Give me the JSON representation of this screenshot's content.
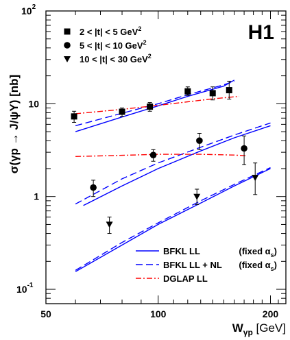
{
  "chart_data": {
    "type": "scatter",
    "title": "",
    "experiment_label": "H1",
    "xlabel": {
      "main": "W",
      "sub": "γp",
      "unit": "[GeV]"
    },
    "ylabel": "σ(γp → J/ψY) [nb]",
    "xscale": "log",
    "yscale": "log",
    "xlim": [
      50,
      220
    ],
    "ylim": [
      0.07,
      100
    ],
    "x_ticks": [
      {
        "value": 50,
        "label": "50"
      },
      {
        "value": 100,
        "label": "100"
      },
      {
        "value": 200,
        "label": "200"
      }
    ],
    "y_ticks": [
      {
        "value": 0.1,
        "base": "10",
        "exp": "-1"
      },
      {
        "value": 1,
        "base": "1",
        "exp": ""
      },
      {
        "value": 10,
        "base": "10",
        "exp": ""
      },
      {
        "value": 100,
        "base": "10",
        "exp": "2"
      }
    ],
    "data_series": [
      {
        "name": "2 < |t| < 5 GeV",
        "name_sup": "2",
        "marker": "square",
        "points": [
          {
            "x": 59.5,
            "y": 7.3,
            "err_lo": 6.3,
            "err_hi": 8.3
          },
          {
            "x": 80,
            "y": 8.2,
            "err_lo": 7.3,
            "err_hi": 9.0
          },
          {
            "x": 95,
            "y": 9.3,
            "err_lo": 8.3,
            "err_hi": 10.3
          },
          {
            "x": 120,
            "y": 13.6,
            "err_lo": 12.3,
            "err_hi": 15.2
          },
          {
            "x": 140,
            "y": 13.0,
            "err_lo": 11.0,
            "err_hi": 15.2
          },
          {
            "x": 155,
            "y": 14.0,
            "err_lo": 11.2,
            "err_hi": 17.5
          }
        ]
      },
      {
        "name": "5 < |t| < 10 GeV",
        "name_sup": "2",
        "marker": "circle",
        "points": [
          {
            "x": 67,
            "y": 1.25,
            "err_lo": 1.0,
            "err_hi": 1.5
          },
          {
            "x": 97,
            "y": 2.8,
            "err_lo": 2.4,
            "err_hi": 3.2
          },
          {
            "x": 129,
            "y": 4.0,
            "err_lo": 3.2,
            "err_hi": 4.8
          },
          {
            "x": 170,
            "y": 3.3,
            "err_lo": 2.2,
            "err_hi": 4.5
          }
        ]
      },
      {
        "name": "10 < |t| < 30 GeV",
        "name_sup": "2",
        "marker": "triangle-down",
        "points": [
          {
            "x": 74,
            "y": 0.5,
            "err_lo": 0.4,
            "err_hi": 0.6
          },
          {
            "x": 127,
            "y": 1.0,
            "err_lo": 0.82,
            "err_hi": 1.2
          },
          {
            "x": 182,
            "y": 1.6,
            "err_lo": 1.05,
            "err_hi": 2.3
          }
        ]
      }
    ],
    "curves": [
      {
        "group": "2 < |t| < 5",
        "model": "BFKL LL",
        "style": "solid",
        "color": "#0000ff",
        "x": [
          60,
          80,
          100,
          120,
          150,
          160
        ],
        "y": [
          5.0,
          7.2,
          9.5,
          12.0,
          15.5,
          18.0
        ]
      },
      {
        "group": "2 < |t| < 5",
        "model": "BFKL LL + NL",
        "style": "dashed",
        "color": "#0000ff",
        "x": [
          60,
          80,
          100,
          120,
          150,
          160
        ],
        "y": [
          5.8,
          7.9,
          10.0,
          12.5,
          16.0,
          17.5
        ]
      },
      {
        "group": "2 < |t| < 5",
        "model": "DGLAP LL",
        "style": "dashdot",
        "color": "#ff0000",
        "x": [
          60,
          80,
          100,
          120,
          140,
          165
        ],
        "y": [
          7.8,
          8.7,
          9.6,
          10.5,
          11.3,
          12.0
        ]
      },
      {
        "group": "5 < |t| < 10",
        "model": "BFKL LL",
        "style": "solid",
        "color": "#0000ff",
        "x": [
          63,
          80,
          100,
          130,
          160,
          200
        ],
        "y": [
          0.8,
          1.3,
          2.0,
          3.1,
          4.3,
          5.8
        ]
      },
      {
        "group": "5 < |t| < 10",
        "model": "BFKL LL + NL",
        "style": "dashed",
        "color": "#0000ff",
        "x": [
          60,
          80,
          100,
          130,
          160,
          200
        ],
        "y": [
          0.83,
          1.55,
          2.3,
          3.4,
          4.6,
          6.2
        ]
      },
      {
        "group": "5 < |t| < 10",
        "model": "DGLAP LL",
        "style": "dashdot",
        "color": "#ff0000",
        "x": [
          60,
          80,
          100,
          130,
          160,
          172
        ],
        "y": [
          2.7,
          2.78,
          2.85,
          2.85,
          2.8,
          2.75
        ]
      },
      {
        "group": "10 < |t| < 30",
        "model": "BFKL LL",
        "style": "solid",
        "color": "#0000ff",
        "x": [
          60,
          80,
          100,
          130,
          160,
          200
        ],
        "y": [
          0.155,
          0.3,
          0.5,
          0.85,
          1.3,
          2.0
        ]
      },
      {
        "group": "10 < |t| < 30",
        "model": "BFKL LL + NL",
        "style": "dashed",
        "color": "#0000ff",
        "x": [
          60,
          80,
          100,
          130,
          160,
          200
        ],
        "y": [
          0.16,
          0.32,
          0.52,
          0.9,
          1.35,
          2.05
        ]
      }
    ],
    "legend_models": [
      {
        "label": "BFKL LL",
        "condition": "(fixed α",
        "condition_sub": "s",
        "condition_end": ")",
        "style": "solid",
        "color": "#0000ff"
      },
      {
        "label": "BFKL LL + NL",
        "condition": "(fixed α",
        "condition_sub": "s",
        "condition_end": ")",
        "style": "dashed",
        "color": "#0000ff"
      },
      {
        "label": "DGLAP LL",
        "condition": "",
        "condition_sub": "",
        "condition_end": "",
        "style": "dashdot",
        "color": "#ff0000"
      }
    ],
    "legend_placement": "data markers top-left, models bottom-right",
    "grid": false,
    "colors": {
      "bfkl": "#0000ff",
      "dglap": "#ff0000",
      "h1": "#0000ff",
      "data": "#000000"
    }
  }
}
